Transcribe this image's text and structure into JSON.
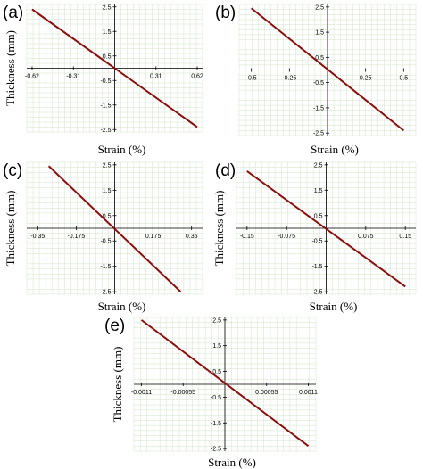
{
  "colors": {
    "line": "#8b0f0f",
    "grid": "#d3e3c9",
    "axis": "#000000"
  },
  "chart_data": [
    {
      "type": "line",
      "panel": "(a)",
      "xlabel": "Strain (%)",
      "ylabel": "Thickness (mm)",
      "xticks": [
        "-0.62",
        "-0.31",
        "0.31",
        "0.62"
      ],
      "xtick_values": [
        -0.62,
        -0.31,
        0.31,
        0.62
      ],
      "yticks": [
        "2.5",
        "1.5",
        "0.5",
        "-0.5",
        "-1.5",
        "-2.5"
      ],
      "ytick_values": [
        2.5,
        1.5,
        0.5,
        -0.5,
        -1.5,
        -2.5
      ],
      "xlim": [
        -0.66,
        0.66
      ],
      "ylim": [
        -2.6,
        2.6
      ],
      "grid": true,
      "series": [
        {
          "x": [
            -0.62,
            0.62
          ],
          "y": [
            2.4,
            -2.4
          ]
        }
      ]
    },
    {
      "type": "line",
      "panel": "(b)",
      "xlabel": "Strain (%)",
      "ylabel": "",
      "xticks": [
        "-0.5",
        "-0.25",
        "0.25",
        "0.5"
      ],
      "xtick_values": [
        -0.5,
        -0.25,
        0.25,
        0.5
      ],
      "yticks": [
        "2.5",
        "1.5",
        "0.5",
        "-0.5",
        "-1.5",
        "-2.5"
      ],
      "ytick_values": [
        2.5,
        1.5,
        0.5,
        -0.5,
        -1.5,
        -2.5
      ],
      "xlim": [
        -0.58,
        0.58
      ],
      "ylim": [
        -2.6,
        2.6
      ],
      "grid": true,
      "series": [
        {
          "x": [
            -0.5,
            0.5
          ],
          "y": [
            2.45,
            -2.4
          ]
        }
      ]
    },
    {
      "type": "line",
      "panel": "(c)",
      "xlabel": "Strain (%)",
      "ylabel": "Thickness (mm)",
      "xticks": [
        "-0.35",
        "-0.175",
        "0.175",
        "0.35"
      ],
      "xtick_values": [
        -0.35,
        -0.175,
        0.175,
        0.35
      ],
      "yticks": [
        "2.5",
        "1.5",
        "0.5",
        "-0.5",
        "-1.5",
        "-2.5"
      ],
      "ytick_values": [
        2.5,
        1.5,
        0.5,
        -0.5,
        -1.5,
        -2.5
      ],
      "xlim": [
        -0.4,
        0.4
      ],
      "ylim": [
        -2.6,
        2.6
      ],
      "grid": true,
      "series": [
        {
          "x": [
            -0.3,
            0.3
          ],
          "y": [
            2.45,
            -2.5
          ]
        }
      ]
    },
    {
      "type": "line",
      "panel": "(d)",
      "xlabel": "Strain (%)",
      "ylabel": "Thickness (mm)",
      "xticks": [
        "-0.15",
        "-0.075",
        "0.075",
        "0.15"
      ],
      "xtick_values": [
        -0.15,
        -0.075,
        0.075,
        0.15
      ],
      "yticks": [
        "2.5",
        "1.5",
        "0.5",
        "-0.5",
        "-1.5",
        "-2.5"
      ],
      "ytick_values": [
        2.5,
        1.5,
        0.5,
        -0.5,
        -1.5,
        -2.5
      ],
      "xlim": [
        -0.17,
        0.17
      ],
      "ylim": [
        -2.6,
        2.6
      ],
      "grid": true,
      "series": [
        {
          "x": [
            -0.15,
            0.15
          ],
          "y": [
            2.25,
            -2.3
          ]
        }
      ]
    },
    {
      "type": "line",
      "panel": "(e)",
      "xlabel": "Strain (%)",
      "ylabel": "Thickness (mm)",
      "xticks": [
        "-0.0011",
        "-0.00055",
        "0.00055",
        "0.0011"
      ],
      "xtick_values": [
        -0.0011,
        -0.00055,
        0.00055,
        0.0011
      ],
      "yticks": [
        "2.5",
        "1.5",
        "0.5",
        "-0.5",
        "-1.5",
        "-2.5"
      ],
      "ytick_values": [
        2.5,
        1.5,
        0.5,
        -0.5,
        -1.5,
        -2.5
      ],
      "xlim": [
        -0.0012,
        0.0012
      ],
      "ylim": [
        -2.6,
        2.6
      ],
      "grid": true,
      "series": [
        {
          "x": [
            -0.0011,
            0.0011
          ],
          "y": [
            2.5,
            -2.4
          ]
        }
      ]
    }
  ]
}
